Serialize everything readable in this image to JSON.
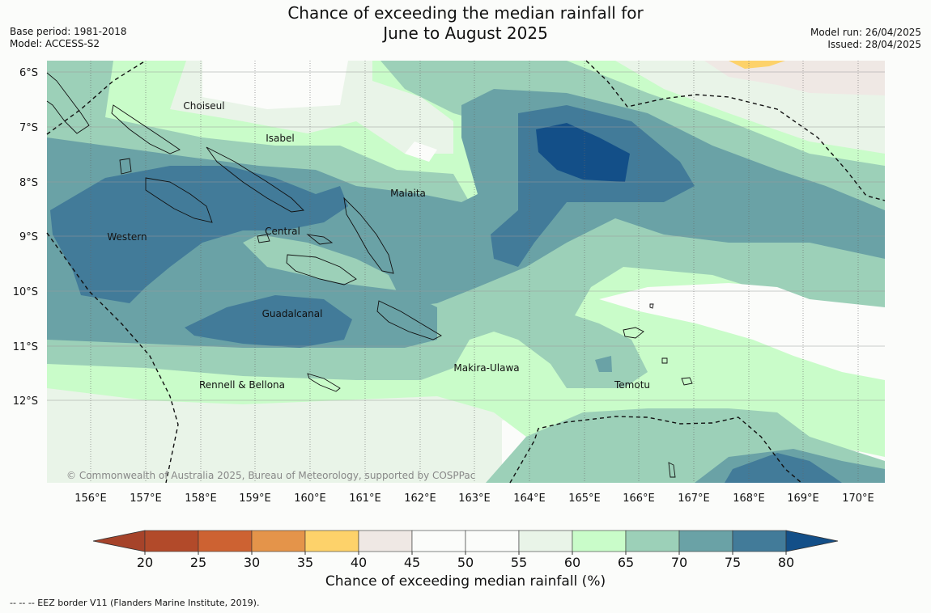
{
  "header": {
    "title_line1": "Chance of exceeding the median rainfall for",
    "title_line2": "June to August 2025",
    "base_period": "Base period: 1981-2018",
    "model": "Model: ACCESS-S2",
    "model_run": "Model run: 26/04/2025",
    "issued": "Issued: 28/04/2025"
  },
  "map": {
    "lat_labels": [
      "6°S",
      "7°S",
      "8°S",
      "9°S",
      "10°S",
      "11°S",
      "12°S"
    ],
    "lon_labels": [
      "156°E",
      "157°E",
      "158°E",
      "159°E",
      "160°E",
      "161°E",
      "162°E",
      "163°E",
      "164°E",
      "165°E",
      "166°E",
      "167°E",
      "168°E",
      "169°E",
      "170°E"
    ],
    "regions": [
      "Choiseul",
      "Isabel",
      "Malaita",
      "Western",
      "Central",
      "Guadalcanal",
      "Makira-Ulawa",
      "Rennell & Bellona",
      "Temotu"
    ],
    "copyright": "© Commonwealth of Australia 2025, Bureau of Meteorology, supported by COSPPac"
  },
  "colorbar": {
    "ticks": [
      "20",
      "25",
      "30",
      "35",
      "40",
      "45",
      "50",
      "55",
      "60",
      "65",
      "70",
      "75",
      "80"
    ],
    "colors": [
      "#b24a2a",
      "#cd6232",
      "#e4944a",
      "#fdd26a",
      "#efe8e4",
      "#fbfcfa",
      "#fbfcfa",
      "#e9f4e8",
      "#c9fcc9",
      "#9cd0b8",
      "#6aa2a6",
      "#427b99",
      "#134f88"
    ],
    "low_color": "#a6432a",
    "high_color": "#134f88",
    "title": "Chance of exceeding median rainfall (%)"
  },
  "footnote": "--  --  -- EEZ border V11 (Flanders Marine Institute, 2019)."
}
